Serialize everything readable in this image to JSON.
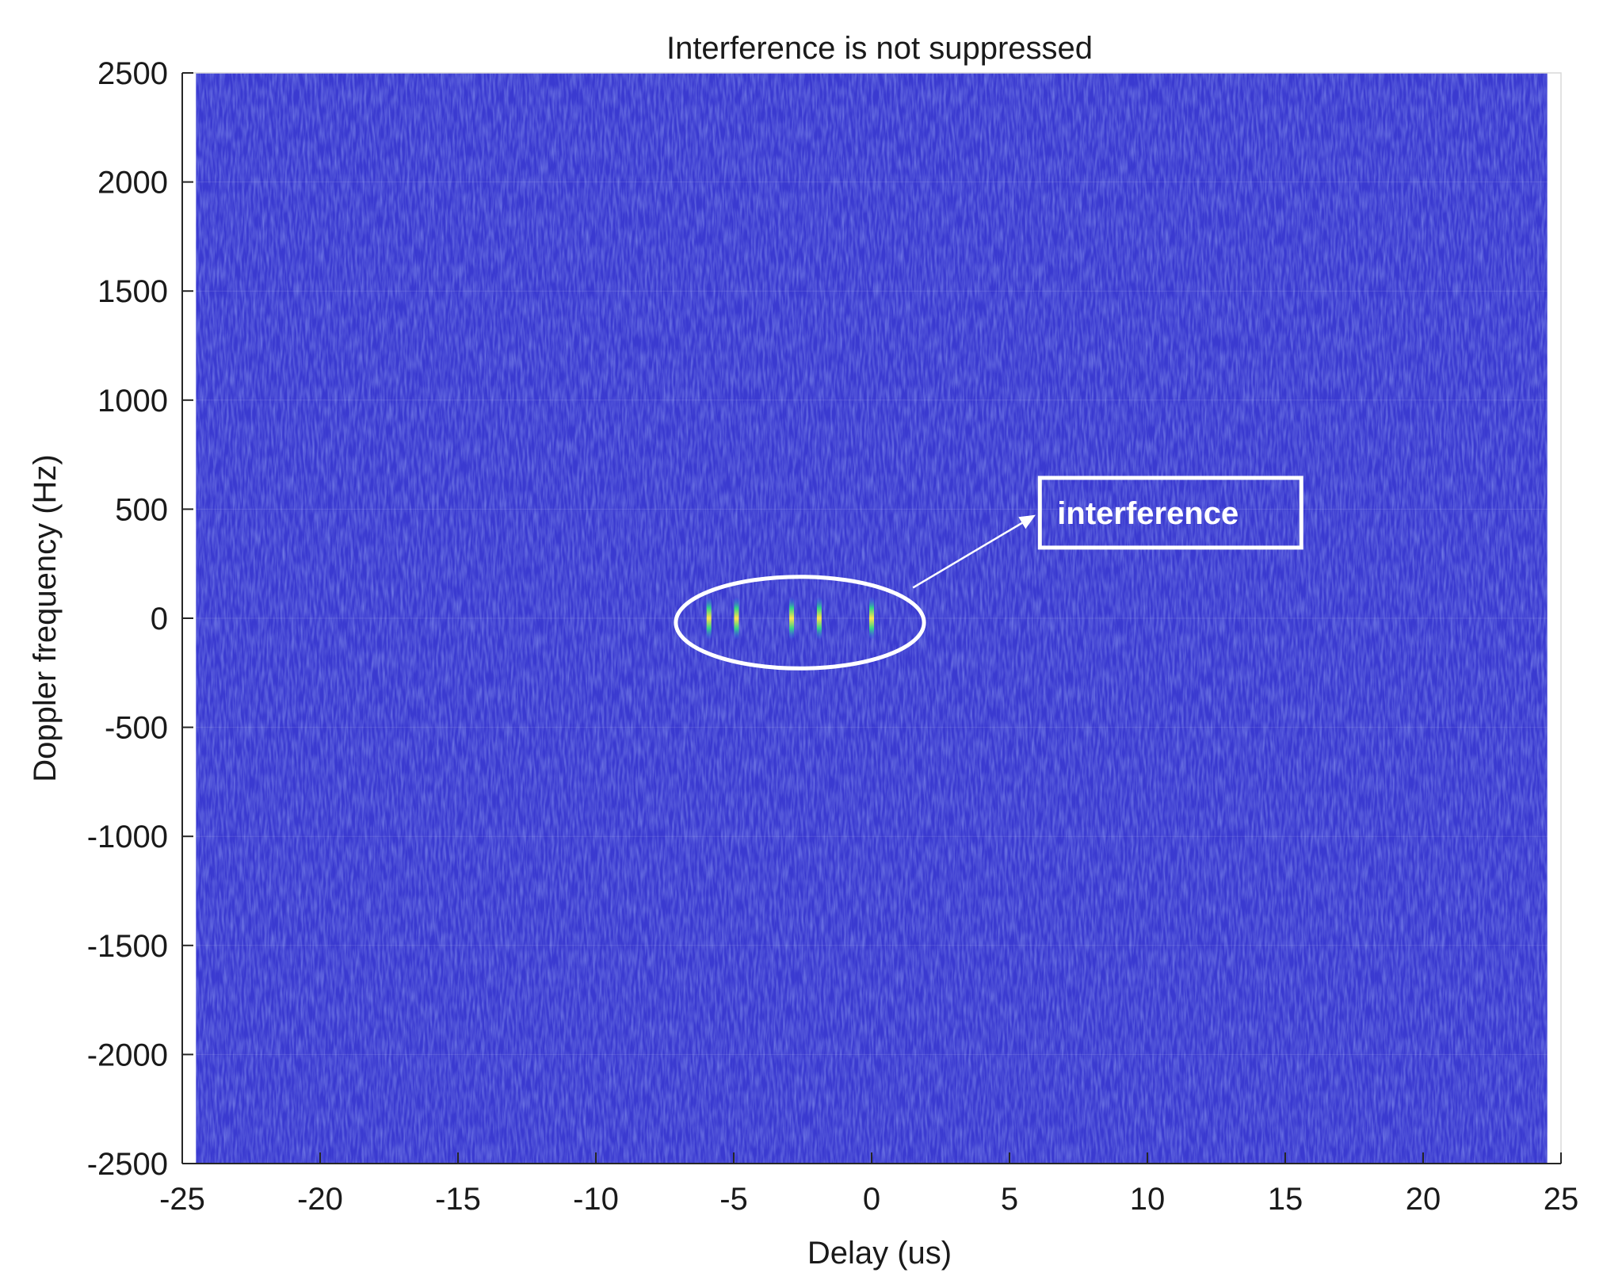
{
  "chart_data": {
    "type": "heatmap",
    "title": "Interference is not suppressed",
    "xlabel": "Delay (us)",
    "ylabel": "Doppler frequency (Hz)",
    "xlim": [
      -25,
      25
    ],
    "ylim": [
      -2500,
      2500
    ],
    "xticks": [
      -25,
      -20,
      -15,
      -10,
      -5,
      0,
      5,
      10,
      15,
      20,
      25
    ],
    "yticks": [
      2500,
      2000,
      1500,
      1000,
      500,
      0,
      -500,
      -1000,
      -1500,
      -2000,
      -2500
    ],
    "data_extent": {
      "x": [
        -24.5,
        24.5
      ],
      "y": [
        -2500,
        2500
      ]
    },
    "background_color": "#3a3ad0",
    "peaks": [
      {
        "delay": -5.9,
        "doppler": 0
      },
      {
        "delay": -4.9,
        "doppler": 0
      },
      {
        "delay": -2.9,
        "doppler": 0
      },
      {
        "delay": -1.9,
        "doppler": 0
      },
      {
        "delay": 0.0,
        "doppler": 0
      }
    ],
    "annotation": {
      "text": "interference",
      "ellipse_center": {
        "delay": -2.6,
        "doppler": -20
      },
      "ellipse_half_width": {
        "delay": 4.5,
        "doppler": 210
      },
      "box_anchor": {
        "delay": 6.1,
        "doppler": 480
      },
      "arrow_from": {
        "delay": 1.5,
        "doppler": 140
      },
      "arrow_to": {
        "delay": 6.0,
        "doppler": 480
      }
    },
    "colors": {
      "noise_dark": "#2c2cb8",
      "noise_light": "#5a6ef0",
      "peak_core": "#ffe34a",
      "peak_mid": "#33d28a",
      "annotation": "#ffffff"
    }
  }
}
